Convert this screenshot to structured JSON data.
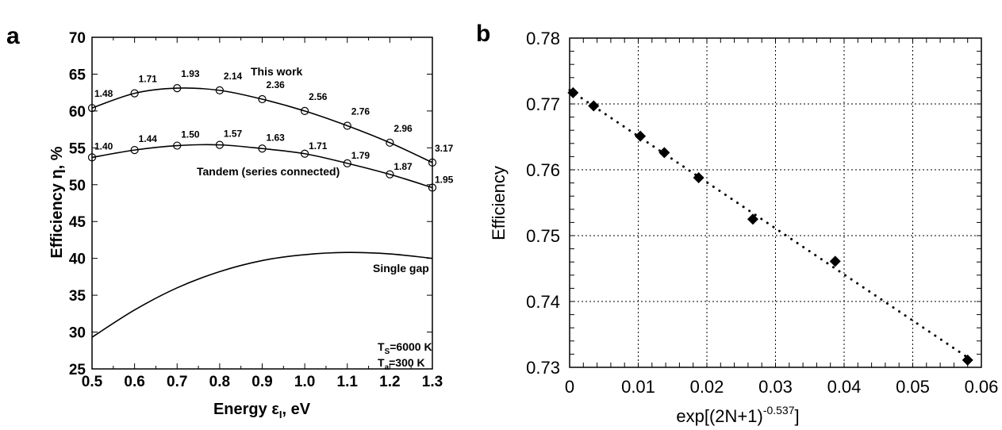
{
  "chart_data": [
    {
      "panel_label": "a",
      "type": "line",
      "xlabel": {
        "main": "Energy ε",
        "sub": "I",
        "suffix": ", eV"
      },
      "ylabel": "Efficiency η, %",
      "xlim": [
        0.5,
        1.3
      ],
      "ylim": [
        25,
        70
      ],
      "xticks": [
        "0.5",
        "0.6",
        "0.7",
        "0.8",
        "0.9",
        "1.0",
        "1.1",
        "1.2",
        "1.3"
      ],
      "yticks": [
        "25",
        "30",
        "35",
        "40",
        "45",
        "50",
        "55",
        "60",
        "65",
        "70"
      ],
      "grid": false,
      "x": [
        0.5,
        0.6,
        0.7,
        0.8,
        0.9,
        1.0,
        1.1,
        1.2,
        1.3
      ],
      "series": [
        {
          "name": "This work",
          "markers": true,
          "values": [
            60.4,
            62.4,
            63.1,
            62.8,
            61.6,
            60.0,
            58.0,
            55.7,
            53.0
          ],
          "point_labels": [
            "1.48",
            "1.71",
            "1.93",
            "2.14",
            "2.36",
            "2.56",
            "2.76",
            "2.96",
            "3.17"
          ]
        },
        {
          "name": "Tandem (series connected)",
          "markers": true,
          "values": [
            53.7,
            54.7,
            55.3,
            55.4,
            54.9,
            54.2,
            52.9,
            51.4,
            49.6
          ],
          "point_labels": [
            "1.40",
            "1.44",
            "1.50",
            "1.57",
            "1.63",
            "1.71",
            "1.79",
            "1.87",
            "1.95"
          ]
        },
        {
          "name": "Single gap",
          "markers": false,
          "values": [
            29.3,
            33.0,
            36.0,
            38.2,
            39.7,
            40.5,
            40.8,
            40.6,
            40.0
          ]
        }
      ],
      "annotations": [
        {
          "main": "T",
          "sub": "S",
          "suffix": "=6000 K"
        },
        {
          "main": "T",
          "sub": "a",
          "suffix": "=300 K"
        }
      ]
    },
    {
      "panel_label": "b",
      "type": "scatter",
      "xlabel": {
        "main": "exp[(2N+1)",
        "sup": "-0.537",
        "suffix": "]"
      },
      "ylabel": "Efficiency",
      "xlim": [
        0,
        0.06
      ],
      "ylim": [
        0.73,
        0.78
      ],
      "xticks": [
        "0",
        "0.01",
        "0.02",
        "0.03",
        "0.04",
        "0.05",
        "0.06"
      ],
      "yticks": [
        "0.73",
        "0.74",
        "0.75",
        "0.76",
        "0.77",
        "0.78"
      ],
      "grid": true,
      "points": {
        "x": [
          0.0005,
          0.0035,
          0.0103,
          0.0138,
          0.0188,
          0.0267,
          0.0387,
          0.058
        ],
        "y": [
          0.7717,
          0.7697,
          0.7651,
          0.7626,
          0.7588,
          0.7525,
          0.7461,
          0.7311
        ]
      },
      "fit_line": {
        "x": [
          0,
          0.058
        ],
        "y": [
          0.7721,
          0.7315
        ],
        "style": "dotted"
      }
    }
  ]
}
